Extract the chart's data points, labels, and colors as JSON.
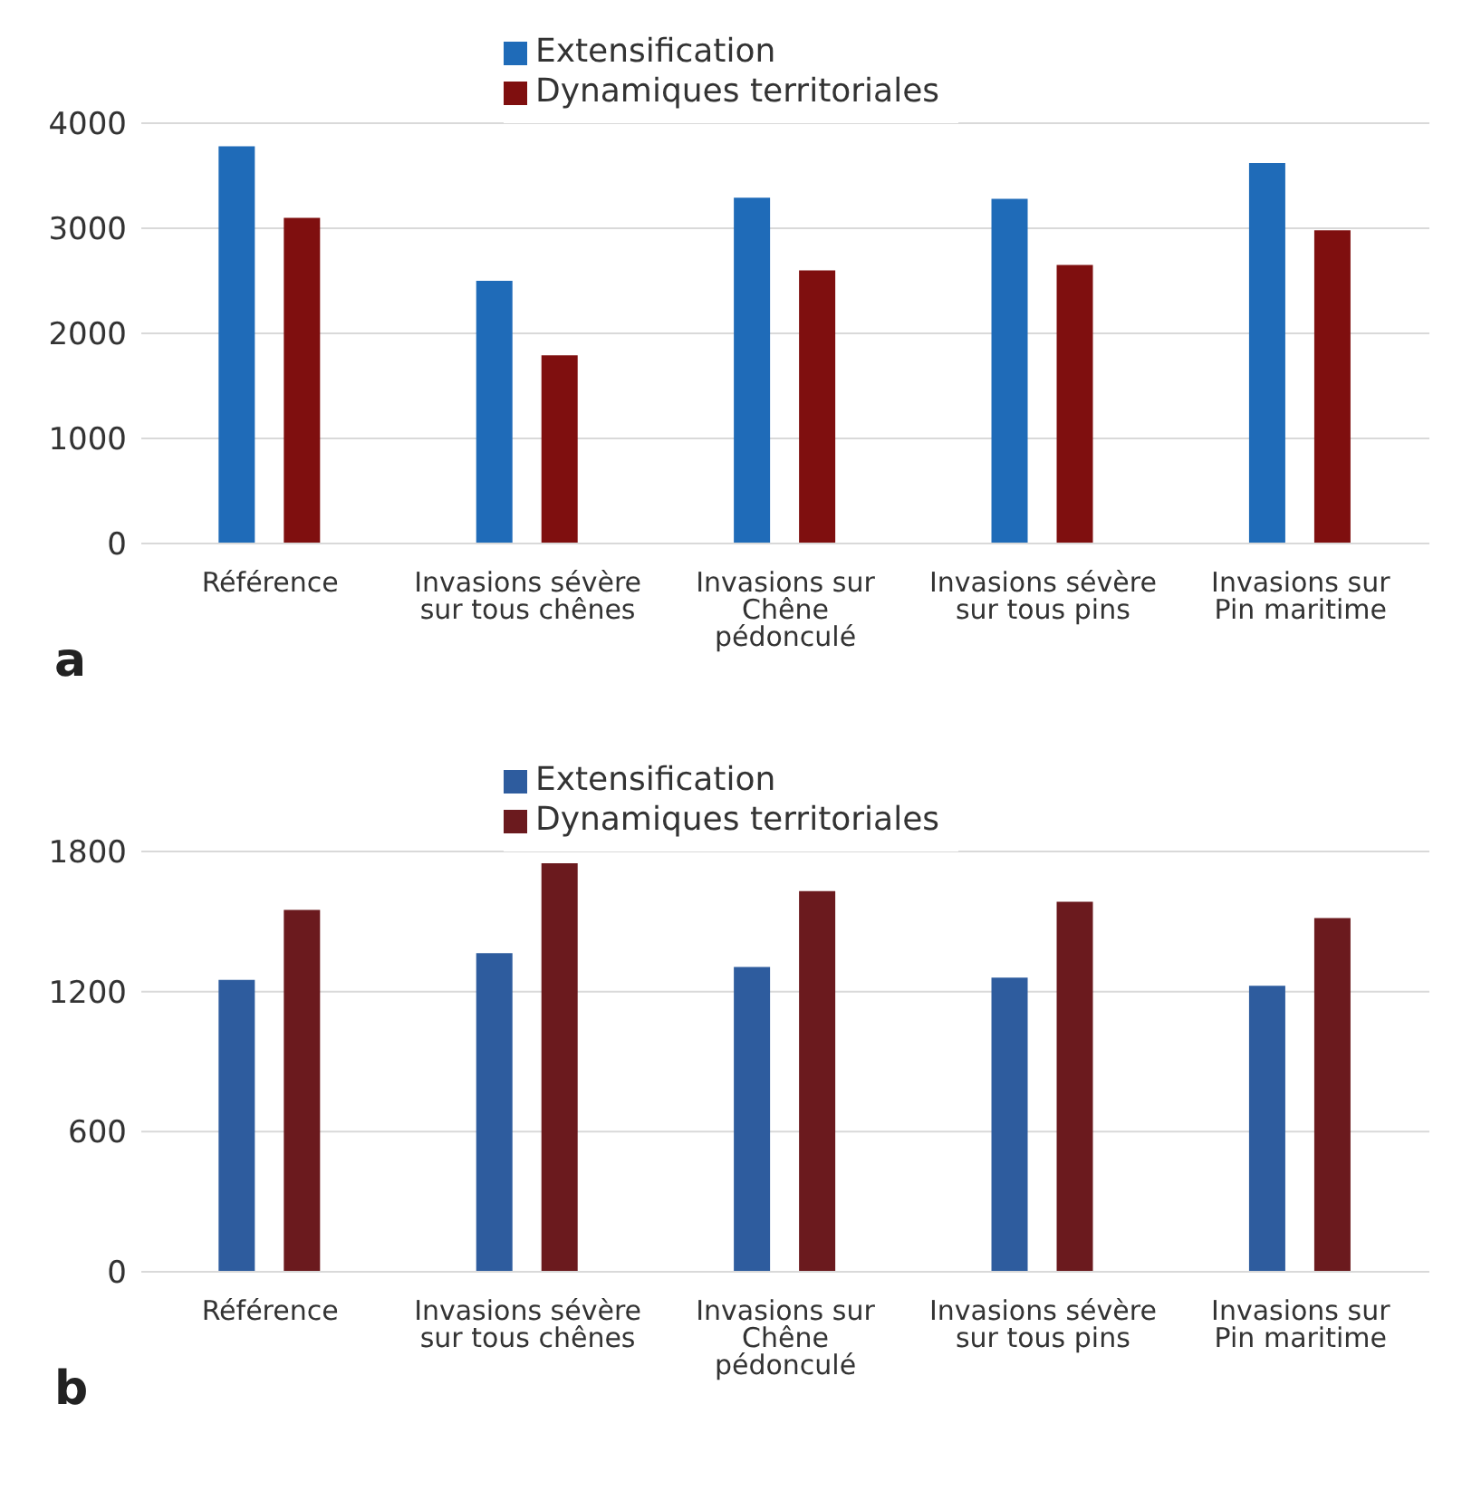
{
  "chart_data": [
    {
      "type": "bar",
      "categories": [
        "Référence",
        "Invasions sévère sur tous chênes",
        "Invasions sur Chêne pédonculé",
        "Invasions sévère sur tous pins",
        "Invasions sur Pin maritime"
      ],
      "series": [
        {
          "name": "Extensification",
          "color": "#1f6bb8",
          "values": [
            3780,
            2500,
            3290,
            3280,
            3620
          ]
        },
        {
          "name": "Dynamiques territoriales",
          "color": "#7f0f0f",
          "values": [
            3100,
            1790,
            2600,
            2650,
            2980
          ]
        }
      ],
      "ylim": [
        0,
        4000
      ],
      "yticks": [
        0,
        1000,
        2000,
        3000,
        4000
      ],
      "grid": "y",
      "legend": "top",
      "annotations": [
        "a"
      ]
    },
    {
      "type": "bar",
      "categories": [
        "Référence",
        "Invasions sévère sur tous chênes",
        "Invasions sur Chêne pédonculé",
        "Invasions sévère sur tous pins",
        "Invasions sur Pin maritime"
      ],
      "series": [
        {
          "name": "Extensification",
          "color": "#2e5c9e",
          "values": [
            1250,
            1365,
            1305,
            1260,
            1225
          ]
        },
        {
          "name": "Dynamiques territoriales",
          "color": "#6b1a1e",
          "values": [
            1550,
            1750,
            1630,
            1585,
            1515
          ]
        }
      ],
      "ylim": [
        0,
        1800
      ],
      "yticks": [
        0,
        600,
        1200,
        1800
      ],
      "grid": "y",
      "legend": "top",
      "annotations": [
        "b"
      ]
    }
  ]
}
